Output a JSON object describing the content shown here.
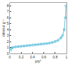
{
  "chart_data": {
    "type": "line",
    "marker": "circle",
    "color": "#5bc0de",
    "x_label": "p/p°",
    "y_label": "n/mmol g⁻¹",
    "x": [
      0.01,
      0.03,
      0.05,
      0.1,
      0.15,
      0.2,
      0.25,
      0.3,
      0.35,
      0.4,
      0.45,
      0.5,
      0.55,
      0.6,
      0.65,
      0.7,
      0.75,
      0.8,
      0.85,
      0.9,
      0.93,
      0.96,
      0.98,
      0.99
    ],
    "values": [
      0.6,
      0.9,
      1.0,
      1.1,
      1.15,
      1.2,
      1.25,
      1.3,
      1.35,
      1.4,
      1.45,
      1.5,
      1.55,
      1.6,
      1.65,
      1.75,
      1.85,
      2.0,
      2.2,
      2.6,
      3.0,
      4.0,
      6.0,
      8.0
    ],
    "xlim": [
      0,
      1
    ],
    "xticks": [
      0,
      0.2,
      0.4,
      0.6,
      0.8,
      1
    ],
    "ylim": [
      0,
      8.5
    ],
    "yticks": [
      0,
      1,
      2,
      3,
      4,
      5,
      6,
      7,
      8
    ],
    "grid": false
  }
}
